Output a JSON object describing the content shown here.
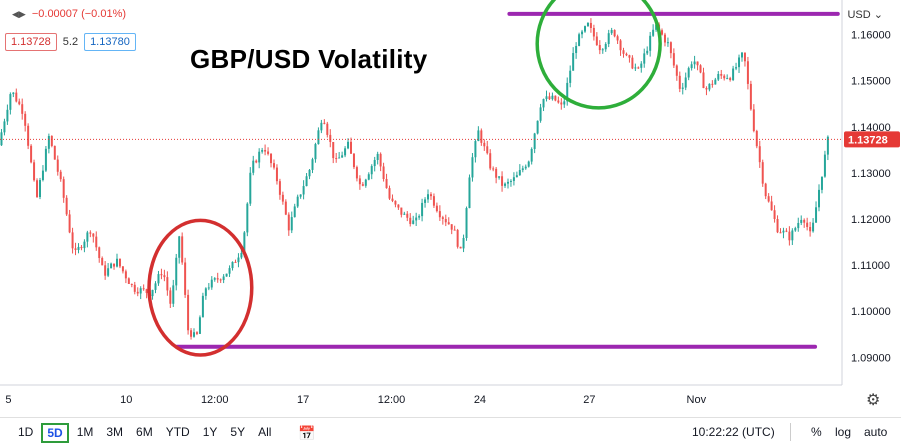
{
  "header": {
    "change_text": "−0.00007 (−0.01%)",
    "bid": "1.13728",
    "spread": "5.2",
    "ask": "1.13780",
    "currency": "USD"
  },
  "title": "GBP/USD Volatility",
  "toolbar": {
    "timeframes": [
      "1D",
      "5D",
      "1M",
      "3M",
      "6M",
      "YTD",
      "1Y",
      "5Y",
      "All"
    ],
    "active_timeframe": "5D",
    "time": "10:22:22 (UTC)",
    "percent_label": "%",
    "log_label": "log",
    "auto_label": "auto"
  },
  "colors": {
    "up": "#26a69a",
    "down": "#ef5350",
    "annotation_line": "#9c27b0",
    "high_circle": "#2eae3a",
    "low_circle": "#d32f2f",
    "last_price": "#e53935"
  },
  "chart_data": {
    "type": "candlestick",
    "instrument": "GBP/USD",
    "ylim": [
      1.084,
      1.1675
    ],
    "yticks": [
      1.09,
      1.1,
      1.11,
      1.12,
      1.13,
      1.14,
      1.15,
      1.16
    ],
    "ytick_labels": [
      "1.09000",
      "1.10000",
      "1.11000",
      "1.12000",
      "1.13000",
      "1.14000",
      "1.15000",
      "1.16000"
    ],
    "xlim": [
      0,
      100
    ],
    "xticks": [
      {
        "label": "5",
        "x": 1
      },
      {
        "label": "10",
        "x": 15
      },
      {
        "label": "12:00",
        "x": 25.5
      },
      {
        "label": "17",
        "x": 36
      },
      {
        "label": "12:00",
        "x": 46.5
      },
      {
        "label": "24",
        "x": 57
      },
      {
        "label": "27",
        "x": 70
      },
      {
        "label": "Nov",
        "x": 82.7
      }
    ],
    "last_price": 1.13728,
    "last_price_label": "1.13728",
    "path": [
      [
        0,
        1.136
      ],
      [
        1.5,
        1.148
      ],
      [
        3,
        1.143
      ],
      [
        4.5,
        1.124
      ],
      [
        6,
        1.138
      ],
      [
        7.5,
        1.127
      ],
      [
        9,
        1.112
      ],
      [
        11,
        1.118
      ],
      [
        12.5,
        1.108
      ],
      [
        14,
        1.111
      ],
      [
        16,
        1.105
      ],
      [
        18,
        1.104
      ],
      [
        19.5,
        1.109
      ],
      [
        20.5,
        1.101
      ],
      [
        21.5,
        1.117
      ],
      [
        22.5,
        1.096
      ],
      [
        23.5,
        1.094
      ],
      [
        24.5,
        1.105
      ],
      [
        26,
        1.107
      ],
      [
        27.5,
        1.109
      ],
      [
        29,
        1.114
      ],
      [
        30,
        1.131
      ],
      [
        31.5,
        1.136
      ],
      [
        33,
        1.129
      ],
      [
        34.5,
        1.118
      ],
      [
        35.5,
        1.124
      ],
      [
        37,
        1.131
      ],
      [
        38.5,
        1.143
      ],
      [
        40,
        1.132
      ],
      [
        41.5,
        1.136
      ],
      [
        43,
        1.127
      ],
      [
        45,
        1.134
      ],
      [
        46.5,
        1.124
      ],
      [
        48,
        1.121
      ],
      [
        49.5,
        1.119
      ],
      [
        51,
        1.126
      ],
      [
        52.5,
        1.121
      ],
      [
        54,
        1.118
      ],
      [
        55,
        1.112
      ],
      [
        56,
        1.131
      ],
      [
        57,
        1.139
      ],
      [
        58.5,
        1.131
      ],
      [
        60,
        1.127
      ],
      [
        61.5,
        1.129
      ],
      [
        63,
        1.133
      ],
      [
        64.5,
        1.146
      ],
      [
        66,
        1.146
      ],
      [
        67,
        1.144
      ],
      [
        68.5,
        1.158
      ],
      [
        70,
        1.162
      ],
      [
        71.5,
        1.157
      ],
      [
        73,
        1.161
      ],
      [
        74.5,
        1.155
      ],
      [
        76,
        1.152
      ],
      [
        78,
        1.162
      ],
      [
        79.5,
        1.158
      ],
      [
        81,
        1.148
      ],
      [
        82.5,
        1.155
      ],
      [
        84,
        1.148
      ],
      [
        85.5,
        1.151
      ],
      [
        87,
        1.151
      ],
      [
        88.5,
        1.156
      ],
      [
        89.5,
        1.142
      ],
      [
        91,
        1.126
      ],
      [
        92.5,
        1.118
      ],
      [
        94,
        1.116
      ],
      [
        95.5,
        1.121
      ],
      [
        96.5,
        1.116
      ],
      [
        97.5,
        1.127
      ],
      [
        98.5,
        1.137
      ]
    ],
    "annotations": [
      {
        "type": "hline",
        "y": 1.1645,
        "x_range": [
          60.5,
          99.5
        ],
        "color": "#9c27b0"
      },
      {
        "type": "hline",
        "y": 1.0923,
        "x_range": [
          21,
          96.8
        ],
        "color": "#9c27b0"
      },
      {
        "type": "ellipse",
        "center": [
          71.1,
          1.158
        ],
        "rx": 7.3,
        "ry": 0.0139,
        "color": "#2eae3a"
      },
      {
        "type": "ellipse",
        "center": [
          23.8,
          1.1051
        ],
        "rx": 6.1,
        "ry": 0.0146,
        "color": "#d32f2f"
      }
    ]
  }
}
